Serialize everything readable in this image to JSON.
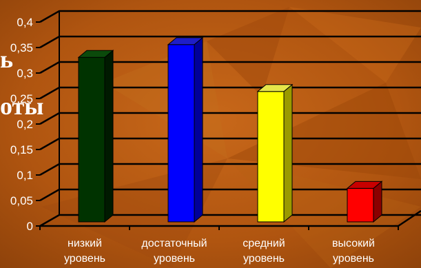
{
  "background_text": {
    "line1": "ь",
    "line2": "оты"
  },
  "colors": {
    "background": "#b25a10",
    "grid": "#000000",
    "text": "#ffffff"
  },
  "chart_data": {
    "type": "bar",
    "style": "3d",
    "categories": [
      [
        "низкий",
        "уровень"
      ],
      [
        "достаточный",
        "уровень"
      ],
      [
        "средний",
        "уровень"
      ],
      [
        "высокий",
        "уровень"
      ]
    ],
    "values": [
      0.32,
      0.345,
      0.253,
      0.063
    ],
    "bar_colors": [
      {
        "front": "#003300",
        "side": "#001a00",
        "top": "#0b4a0b"
      },
      {
        "front": "#0000ff",
        "side": "#000099",
        "top": "#1e1ec8"
      },
      {
        "front": "#ffff00",
        "side": "#9a9a00",
        "top": "#e6e64a"
      },
      {
        "front": "#ff0000",
        "side": "#8a0000",
        "top": "#c80000"
      }
    ],
    "y_ticks": [
      "0",
      "0,05",
      "0,1",
      "0,15",
      "0,2",
      "0,25",
      "0,3",
      "0,35",
      "0,4"
    ],
    "ylim": [
      0,
      0.4
    ],
    "grid": true,
    "legend": "none"
  }
}
